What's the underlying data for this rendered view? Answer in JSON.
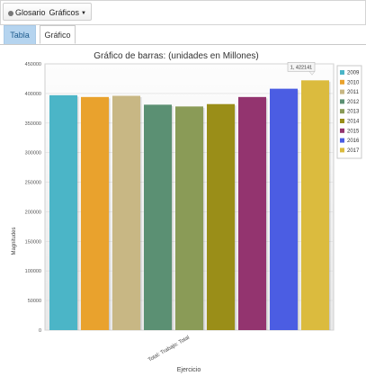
{
  "toolbar": {
    "glossary_label": "Glosario",
    "active_label": "Gráficos"
  },
  "tabs": [
    {
      "label": "Tabla"
    },
    {
      "label": "Gráfico"
    }
  ],
  "chart_data": {
    "type": "bar",
    "title": "Gráfico de barras: (unidades en Millones)",
    "xlabel": "Ejercicio",
    "ylabel": "Magnitudes",
    "categories": [
      "Total: Trabajo: Total"
    ],
    "ylim": [
      0,
      450000
    ],
    "yticks": [
      0,
      50000,
      100000,
      150000,
      200000,
      250000,
      300000,
      350000,
      400000,
      450000
    ],
    "series": [
      {
        "name": "2009",
        "values": [
          397000
        ],
        "color": "#4bb5c7"
      },
      {
        "name": "2010",
        "values": [
          394000
        ],
        "color": "#e9a22d"
      },
      {
        "name": "2011",
        "values": [
          396000
        ],
        "color": "#c8b784"
      },
      {
        "name": "2012",
        "values": [
          381000
        ],
        "color": "#5b9073"
      },
      {
        "name": "2013",
        "values": [
          378000
        ],
        "color": "#8a9b57"
      },
      {
        "name": "2014",
        "values": [
          382000
        ],
        "color": "#9a8e18"
      },
      {
        "name": "2015",
        "values": [
          394000
        ],
        "color": "#93346f"
      },
      {
        "name": "2016",
        "values": [
          408000
        ],
        "color": "#4b5de3"
      },
      {
        "name": "2017",
        "values": [
          422141
        ],
        "color": "#dbbb3e"
      }
    ],
    "tooltip": "1, 422141",
    "grid": true,
    "legend": "right"
  }
}
